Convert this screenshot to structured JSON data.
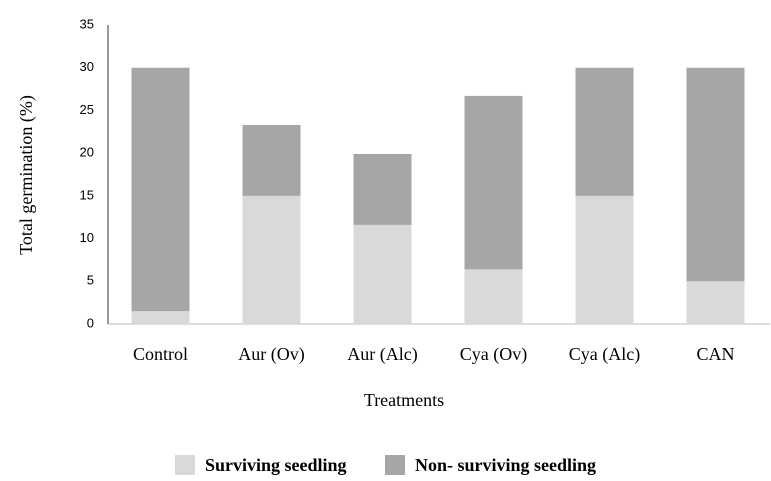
{
  "chart_data": {
    "type": "stacked_bar",
    "x_label": "Treatments",
    "y_label": "Total germination (%)",
    "categories": [
      "Control",
      "Aur (Ov)",
      "Aur (Alc)",
      "Cya (Ov)",
      "Cya (Alc)",
      "CAN"
    ],
    "series": [
      {
        "name": "Surviving seedling",
        "color": "#d9d9d9",
        "values": [
          1.5,
          15,
          11.6,
          6.4,
          15,
          5
        ]
      },
      {
        "name": "Non- surviving seedling",
        "color": "#a6a6a6",
        "values": [
          28.5,
          8.3,
          8.3,
          20.3,
          15,
          25
        ]
      }
    ],
    "ylim": [
      0,
      35
    ],
    "yticks": [
      0,
      5,
      10,
      15,
      20,
      25,
      30,
      35
    ],
    "grid": false,
    "legend": "bottom"
  }
}
